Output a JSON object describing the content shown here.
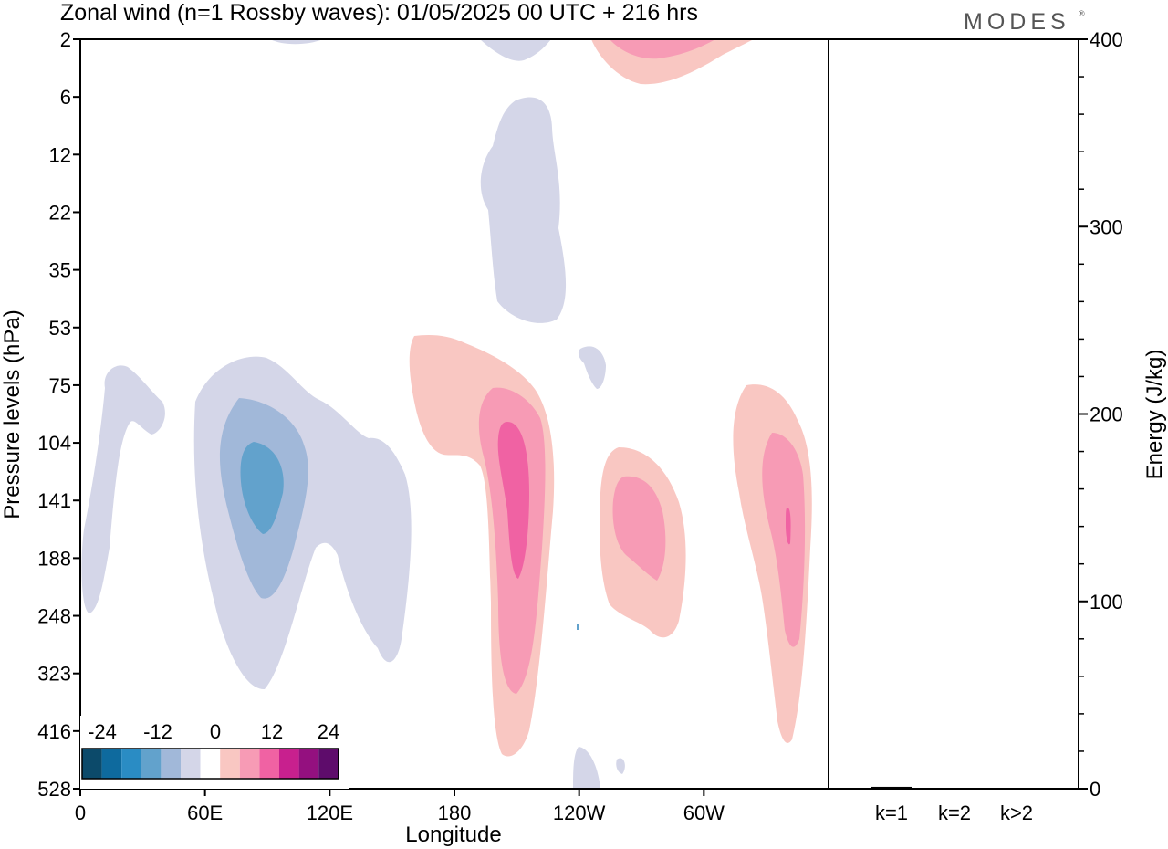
{
  "title": "Zonal wind (n=1 Rossby waves):  01/05/2025  00 UTC  + 216 hrs",
  "logo": "MODES",
  "logo_mark": "®",
  "chart_data": [
    {
      "type": "heatmap",
      "xlabel": "Longitude",
      "ylabel": "Pressure levels (hPa)",
      "x_ticks": [
        "0",
        "60E",
        "120E",
        "180",
        "120W",
        "60W"
      ],
      "x_tick_degrees": [
        0,
        60,
        120,
        180,
        240,
        300
      ],
      "xlim": [
        0,
        360
      ],
      "y_ticks": [
        "2",
        "6",
        "12",
        "22",
        "35",
        "53",
        "75",
        "104",
        "141",
        "188",
        "248",
        "323",
        "416",
        "528"
      ],
      "colorbar": {
        "labels": [
          "-24",
          "-12",
          "0",
          "12",
          "24"
        ],
        "colors": [
          "#0c4a6a",
          "#0e6a9e",
          "#2a8cc4",
          "#62a2cc",
          "#a1b8d9",
          "#d4d6e8",
          "#ffffff",
          "#f9c7c2",
          "#f79bb5",
          "#f062a3",
          "#c8208e",
          "#94107f",
          "#5e0c6b"
        ]
      },
      "features": [
        {
          "sign": "negative",
          "lon": 85,
          "level": "141",
          "peak": -12
        },
        {
          "sign": "negative",
          "lon": 205,
          "level": "22",
          "peak": -3
        },
        {
          "sign": "negative",
          "lon": 15,
          "level": "104",
          "peak": -3
        },
        {
          "sign": "positive",
          "lon": 200,
          "level": "141",
          "peak": 12
        },
        {
          "sign": "positive",
          "lon": 260,
          "level": "141",
          "peak": 9
        },
        {
          "sign": "positive",
          "lon": 340,
          "level": "141",
          "peak": 12
        },
        {
          "sign": "positive",
          "lon": 265,
          "level": "2",
          "peak": 9
        }
      ]
    },
    {
      "type": "bar",
      "ylabel": "Energy (J/kg)",
      "categories": [
        "k=1",
        "k=2",
        "k>2"
      ],
      "values": [
        1,
        0,
        0.3
      ],
      "ylim": [
        0,
        400
      ],
      "y_ticks": [
        "0",
        "100",
        "200",
        "300",
        "400"
      ]
    }
  ]
}
